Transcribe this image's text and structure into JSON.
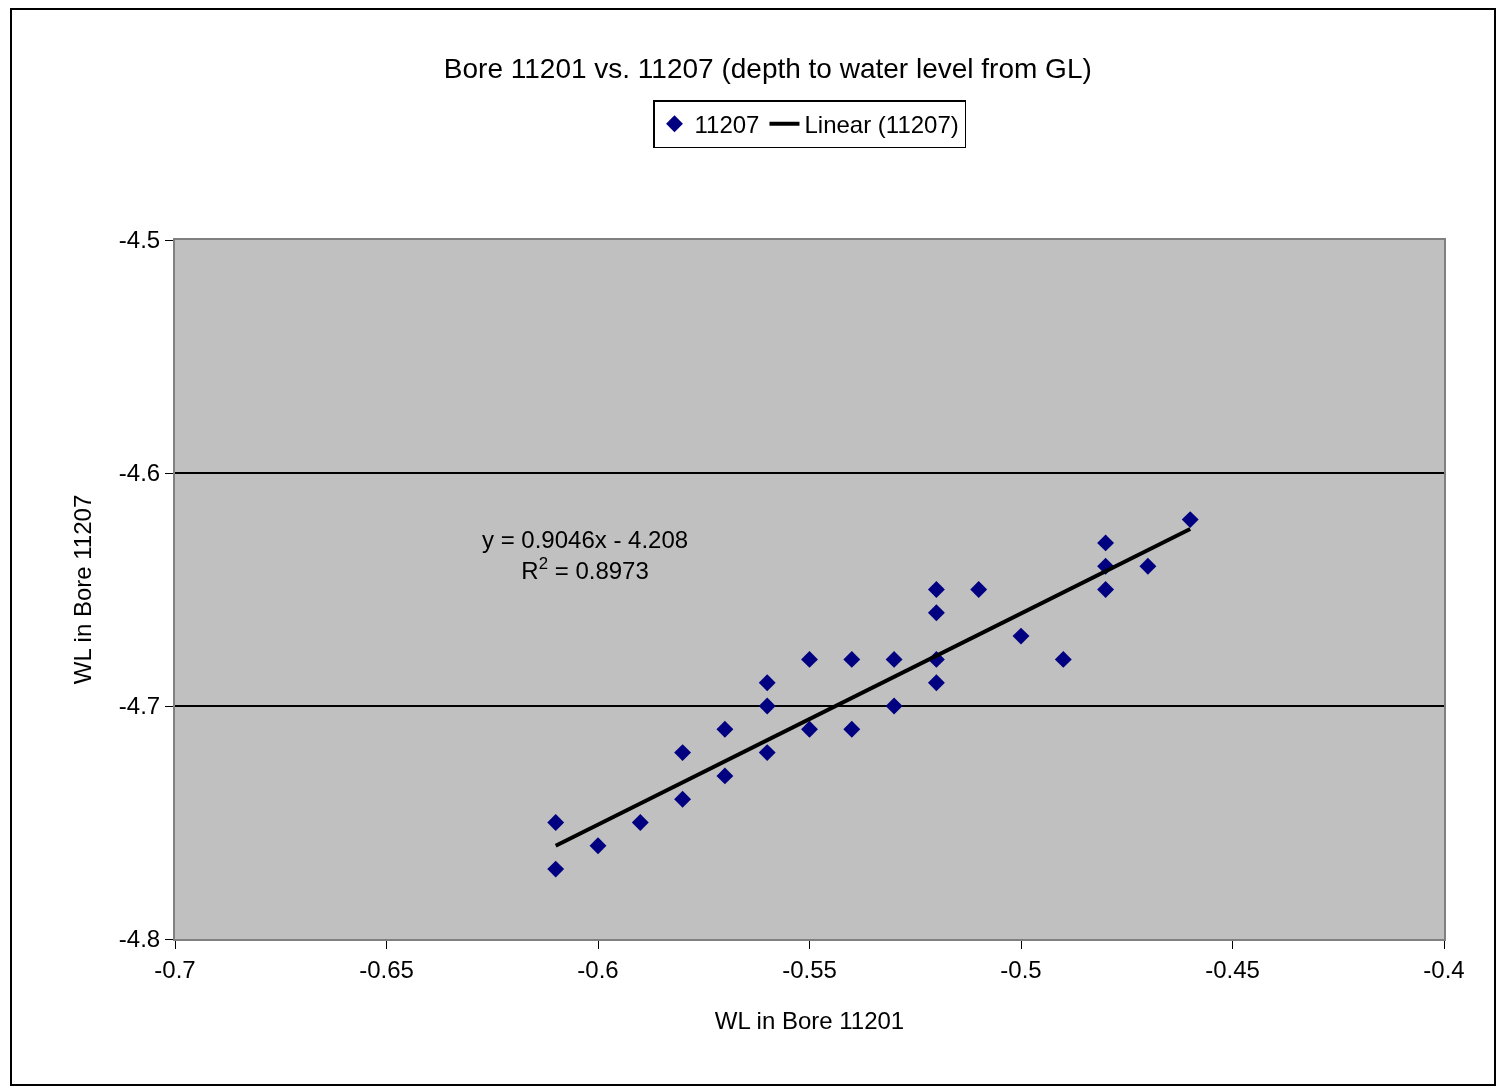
{
  "chart_data": {
    "type": "scatter",
    "title": "Bore 11201 vs. 11207 (depth to water level from GL)",
    "xlabel": "WL in Bore 11201",
    "ylabel": "WL in Bore 11207",
    "xlim": [
      -0.7,
      -0.4
    ],
    "xticks": [
      -0.7,
      -0.65,
      -0.6,
      -0.55,
      -0.5,
      -0.45,
      -0.4
    ],
    "ylim": [
      -4.8,
      -4.5
    ],
    "yticks": [
      -4.8,
      -4.7,
      -4.6,
      -4.5
    ],
    "grid": "y",
    "legend": "top",
    "series": [
      {
        "name": "11207",
        "color": "#000080",
        "marker": "diamond",
        "x": [
          -0.61,
          -0.61,
          -0.6,
          -0.59,
          -0.58,
          -0.58,
          -0.57,
          -0.57,
          -0.56,
          -0.56,
          -0.56,
          -0.55,
          -0.55,
          -0.54,
          -0.54,
          -0.53,
          -0.53,
          -0.52,
          -0.52,
          -0.52,
          -0.52,
          -0.51,
          -0.5,
          -0.49,
          -0.48,
          -0.48,
          -0.48,
          -0.47,
          -0.46
        ],
        "values": [
          -4.75,
          -4.77,
          -4.76,
          -4.75,
          -4.72,
          -4.74,
          -4.71,
          -4.73,
          -4.69,
          -4.7,
          -4.72,
          -4.68,
          -4.71,
          -4.68,
          -4.71,
          -4.68,
          -4.7,
          -4.65,
          -4.66,
          -4.68,
          -4.69,
          -4.65,
          -4.67,
          -4.68,
          -4.63,
          -4.64,
          -4.65,
          -4.64,
          -4.62
        ]
      },
      {
        "name": "Linear (11207)",
        "type": "line",
        "color": "#000000",
        "x": [
          -0.61,
          -0.46
        ],
        "values": [
          -4.76,
          -4.624
        ]
      }
    ],
    "annotations": [
      "y = 0.9046x - 4.208\nR$^{2}$ = 0.8973"
    ]
  }
}
